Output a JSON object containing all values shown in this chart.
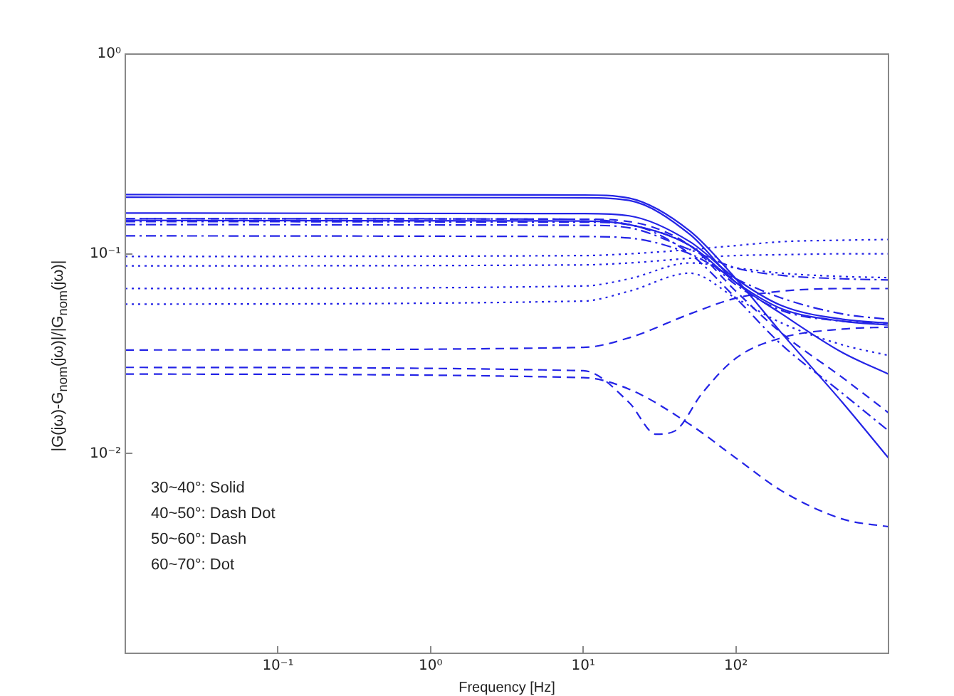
{
  "chart_data": {
    "type": "line",
    "xlabel": "Frequency [Hz]",
    "ylabel": "|G(jω)-G$_{nom}$(jω)|/|G$_{nom}$(jω)|",
    "log": "xy",
    "xlim": [
      0.01,
      1000
    ],
    "ylim": [
      0.001,
      1
    ],
    "xticks": [
      {
        "value": 0.1,
        "label": "10⁻¹"
      },
      {
        "value": 1,
        "label": "10⁰"
      },
      {
        "value": 10,
        "label": "10¹"
      },
      {
        "value": 100,
        "label": "10²"
      }
    ],
    "yticks": [
      {
        "value": 0.01,
        "label": "10⁻²"
      },
      {
        "value": 0.1,
        "label": "10⁻¹"
      },
      {
        "value": 1,
        "label": "10⁰"
      }
    ],
    "grid": false,
    "legend": false,
    "marker": "none",
    "x": [
      0.01,
      10,
      20,
      50,
      100,
      200,
      500,
      1000
    ],
    "annotations": [
      "30~40°: Solid",
      "40~50°: Dash Dot",
      "50~60°: Dash",
      "60~70°: Dot"
    ],
    "series": [
      {
        "color": "#2424e6",
        "line_style": "solid",
        "values": [
          0.198,
          0.197,
          0.19,
          0.13,
          0.075,
          0.04,
          0.018,
          0.0095
        ]
      },
      {
        "color": "#2424e6",
        "line_style": "solid",
        "values": [
          0.192,
          0.191,
          0.185,
          0.125,
          0.072,
          0.05,
          0.032,
          0.025
        ]
      },
      {
        "color": "#2424e6",
        "line_style": "solid",
        "values": [
          0.16,
          0.159,
          0.155,
          0.115,
          0.075,
          0.055,
          0.047,
          0.045
        ]
      },
      {
        "color": "#2424e6",
        "line_style": "solid",
        "values": [
          0.147,
          0.146,
          0.14,
          0.11,
          0.072,
          0.053,
          0.046,
          0.044
        ]
      },
      {
        "color": "#2424e6",
        "line_style": "dashdot",
        "values": [
          0.15,
          0.149,
          0.14,
          0.11,
          0.07,
          0.052,
          0.046,
          0.045
        ]
      },
      {
        "color": "#2424e6",
        "line_style": "dashdot",
        "values": [
          0.145,
          0.144,
          0.14,
          0.1,
          0.06,
          0.035,
          0.02,
          0.013
        ]
      },
      {
        "color": "#2424e6",
        "line_style": "dashdot",
        "values": [
          0.14,
          0.139,
          0.135,
          0.105,
          0.085,
          0.078,
          0.075,
          0.074
        ]
      },
      {
        "color": "#2424e6",
        "line_style": "dashdot",
        "values": [
          0.123,
          0.122,
          0.12,
          0.1,
          0.075,
          0.06,
          0.05,
          0.047
        ]
      },
      {
        "color": "#2424e6",
        "line_style": "dashed",
        "values": [
          0.033,
          0.034,
          0.038,
          0.05,
          0.06,
          0.065,
          0.067,
          0.067
        ]
      },
      {
        "color": "#2424e6",
        "line_style": "dashed",
        "x": [
          0.01,
          10,
          20,
          30,
          40,
          60,
          100,
          200,
          500,
          1000
        ],
        "values": [
          0.027,
          0.026,
          0.018,
          0.0125,
          0.013,
          0.02,
          0.03,
          0.038,
          0.042,
          0.043
        ]
      },
      {
        "color": "#2424e6",
        "line_style": "dashed",
        "values": [
          0.025,
          0.024,
          0.021,
          0.014,
          0.0095,
          0.0065,
          0.0047,
          0.0043
        ]
      },
      {
        "color": "#2424e6",
        "line_style": "dashed",
        "values": [
          0.15,
          0.149,
          0.145,
          0.11,
          0.065,
          0.04,
          0.024,
          0.016
        ]
      },
      {
        "color": "#2424e6",
        "line_style": "dotted",
        "values": [
          0.097,
          0.098,
          0.1,
          0.105,
          0.11,
          0.115,
          0.117,
          0.118
        ]
      },
      {
        "color": "#2424e6",
        "line_style": "dotted",
        "values": [
          0.087,
          0.088,
          0.09,
          0.095,
          0.098,
          0.099,
          0.1,
          0.1
        ]
      },
      {
        "color": "#2424e6",
        "line_style": "dotted",
        "values": [
          0.067,
          0.069,
          0.075,
          0.09,
          0.085,
          0.08,
          0.077,
          0.076
        ]
      },
      {
        "color": "#2424e6",
        "line_style": "dotted",
        "values": [
          0.056,
          0.058,
          0.065,
          0.08,
          0.06,
          0.045,
          0.035,
          0.031
        ]
      }
    ]
  }
}
